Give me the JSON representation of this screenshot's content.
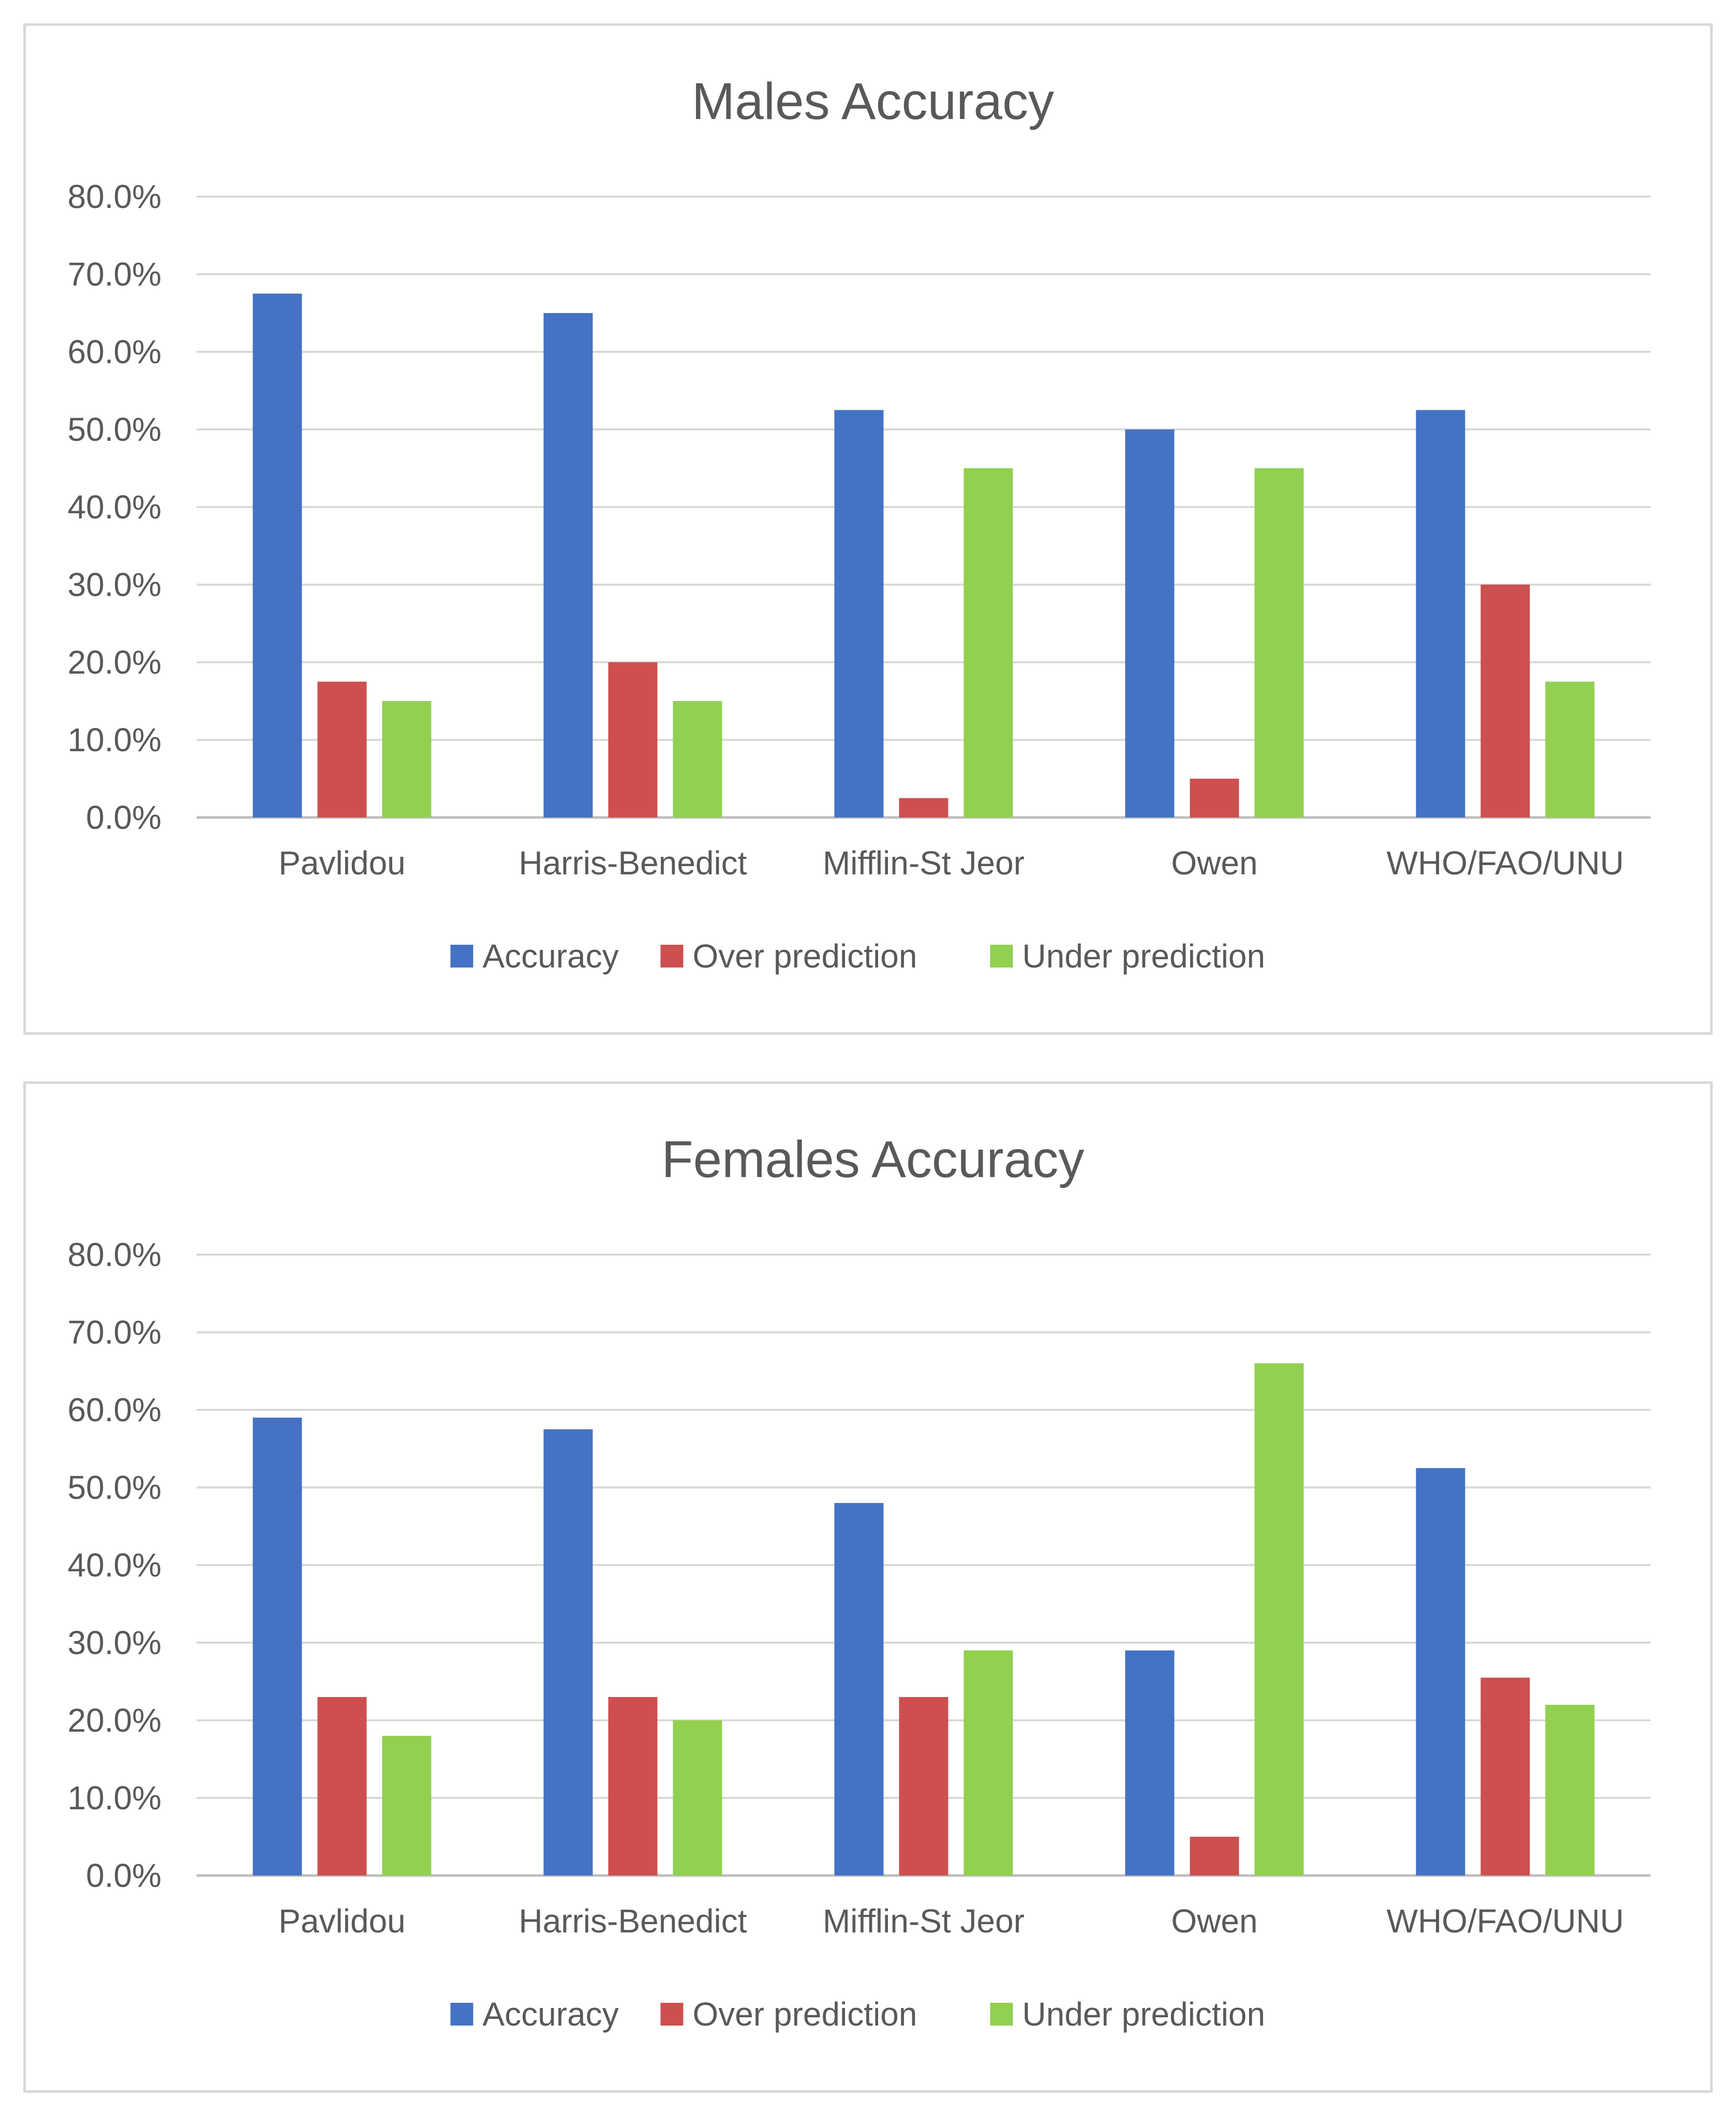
{
  "colors": {
    "accuracy": "#4472C4",
    "over": "#CD4F4F",
    "under": "#92D050"
  },
  "chart_data": [
    {
      "type": "bar",
      "title": "Males Accuracy",
      "categories": [
        "Pavlidou",
        "Harris-Benedict",
        "Mifflin-St Jeor",
        "Owen",
        "WHO/FAO/UNU"
      ],
      "series": [
        {
          "name": "Accuracy",
          "values": [
            67.5,
            65.0,
            52.5,
            50.0,
            52.5
          ]
        },
        {
          "name": "Over prediction",
          "values": [
            17.5,
            20.0,
            2.5,
            5.0,
            30.0
          ]
        },
        {
          "name": "Under prediction",
          "values": [
            15.0,
            15.0,
            45.0,
            45.0,
            17.5
          ]
        }
      ],
      "yticks": [
        "0.0%",
        "10.0%",
        "20.0%",
        "30.0%",
        "40.0%",
        "50.0%",
        "60.0%",
        "70.0%",
        "80.0%"
      ],
      "ylim": [
        0,
        80
      ],
      "xlabel": "",
      "ylabel": "",
      "legend_position": "bottom",
      "grid": true
    },
    {
      "type": "bar",
      "title": "Females Accuracy",
      "categories": [
        "Pavlidou",
        "Harris-Benedict",
        "Mifflin-St Jeor",
        "Owen",
        "WHO/FAO/UNU"
      ],
      "series": [
        {
          "name": "Accuracy",
          "values": [
            59.0,
            57.5,
            48.0,
            29.0,
            52.5
          ]
        },
        {
          "name": "Over prediction",
          "values": [
            23.0,
            23.0,
            23.0,
            5.0,
            25.5
          ]
        },
        {
          "name": "Under prediction",
          "values": [
            18.0,
            20.0,
            29.0,
            66.0,
            22.0
          ]
        }
      ],
      "yticks": [
        "0.0%",
        "10.0%",
        "20.0%",
        "30.0%",
        "40.0%",
        "50.0%",
        "60.0%",
        "70.0%",
        "80.0%"
      ],
      "ylim": [
        0,
        80
      ],
      "xlabel": "",
      "ylabel": "",
      "legend_position": "bottom",
      "grid": true
    }
  ]
}
